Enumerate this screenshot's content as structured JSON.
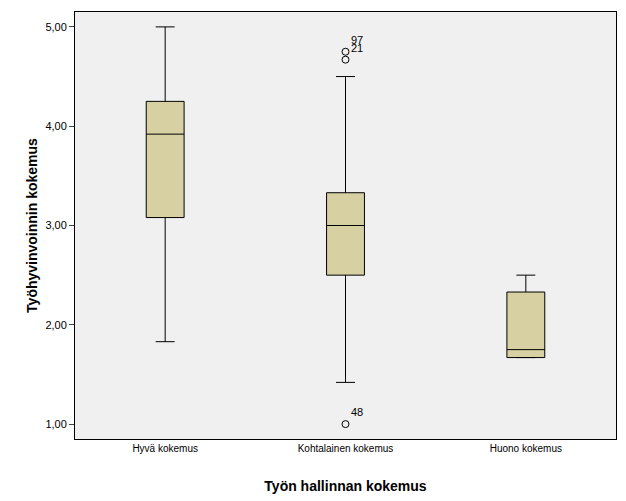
{
  "chart_data": {
    "type": "box",
    "x_label": "Työn hallinnan kokemus",
    "y_label": "Työhyvinvoinnin kokemus",
    "categories": [
      "Hyvä kokemus",
      "Kohtalainen kokemus",
      "Huono kokemus"
    ],
    "whisker_low": [
      1.83,
      1.42,
      1.67
    ],
    "q1": [
      3.08,
      2.5,
      1.67
    ],
    "median": [
      3.92,
      3.0,
      1.75
    ],
    "q3": [
      4.25,
      3.33,
      2.33
    ],
    "whisker_high": [
      5.0,
      4.5,
      2.5
    ],
    "outliers": [
      {
        "category": "Kohtalainen kokemus",
        "value": 4.75,
        "label": "97"
      },
      {
        "category": "Kohtalainen kokemus",
        "value": 4.67,
        "label": "21"
      },
      {
        "category": "Kohtalainen kokemus",
        "value": 1.0,
        "label": "48"
      }
    ],
    "color": "#d6d0a2",
    "ylim": [
      0.85,
      5.15
    ],
    "yticks": [
      {
        "value": 1,
        "label": "1,00"
      },
      {
        "value": 2,
        "label": "2,00"
      },
      {
        "value": 3,
        "label": "3,00"
      },
      {
        "value": 4,
        "label": "4,00"
      },
      {
        "value": 5,
        "label": "5,00"
      }
    ],
    "grid": false
  }
}
